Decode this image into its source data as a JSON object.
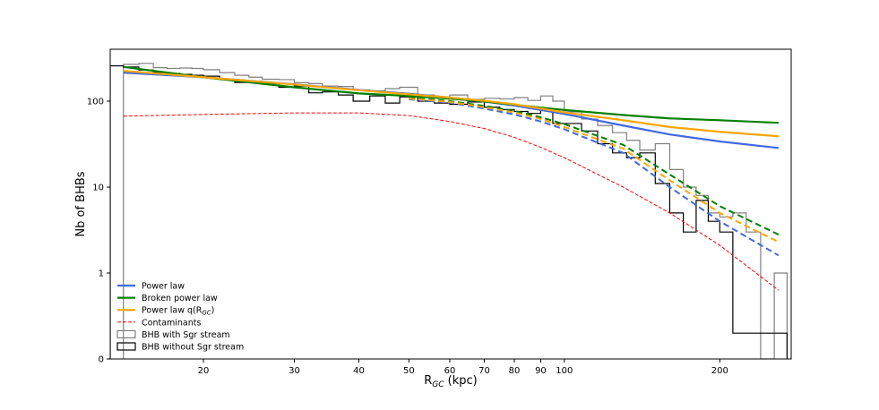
{
  "chart_data": {
    "type": "line",
    "title": "",
    "xlabel_main": "R",
    "xlabel_sub": "GC",
    "xlabel_tail": " (kpc)",
    "ylabel": "Nb of BHBs",
    "x_scale": "log",
    "y_scale": "symlog",
    "xlim": [
      13.2,
      275
    ],
    "ylim": [
      0,
      350
    ],
    "x_ticks": [
      {
        "value": 20,
        "label": "20"
      },
      {
        "value": 30,
        "label": "30"
      },
      {
        "value": 40,
        "label": "40"
      },
      {
        "value": 50,
        "label": "50"
      },
      {
        "value": 60,
        "label": "60"
      },
      {
        "value": 70,
        "label": "70"
      },
      {
        "value": 80,
        "label": "80"
      },
      {
        "value": 90,
        "label": "90"
      },
      {
        "value": 100,
        "label": "100"
      },
      {
        "value": 200,
        "label": "200"
      }
    ],
    "y_ticks": [
      {
        "value": 0,
        "label": "0"
      },
      {
        "value": 1,
        "label": "1"
      },
      {
        "value": 10,
        "label": "10"
      },
      {
        "value": 100,
        "label": "100"
      }
    ],
    "grid": false,
    "legend_position": "bottom-left",
    "colors": {
      "power_law": "#4169e1",
      "broken_power_law": "#008000",
      "power_law_q": "#ffa500",
      "contaminants": "#ff0000",
      "hist_with_sgr": "#808080",
      "hist_without_sgr": "#000000"
    },
    "legend": [
      {
        "key": "power_law",
        "label": "Power law",
        "style": "line",
        "sub": ""
      },
      {
        "key": "broken_power_law",
        "label": "Broken power law",
        "style": "line",
        "sub": ""
      },
      {
        "key": "power_law_q",
        "label": "Power law q(R",
        "sub": "GC",
        "tail": ")",
        "style": "line"
      },
      {
        "key": "contaminants",
        "label": "Contaminants",
        "style": "dashed-thin",
        "sub": ""
      },
      {
        "key": "hist_with_sgr",
        "label": "BHB with Sgr stream",
        "style": "box",
        "sub": ""
      },
      {
        "key": "hist_without_sgr",
        "label": "BHB without Sgr stream",
        "style": "box",
        "sub": ""
      }
    ],
    "series": [
      {
        "key": "power_law",
        "name": "Power law",
        "style": "solid",
        "x": [
          14,
          20,
          30,
          40,
          50,
          60,
          70,
          80,
          90,
          100,
          130,
          160,
          200,
          260
        ],
        "y": [
          215,
          190,
          157,
          135,
          122,
          110,
          99,
          89,
          79,
          71,
          52,
          41,
          34,
          28.5
        ]
      },
      {
        "key": "broken_power_law",
        "name": "Broken power law",
        "style": "solid",
        "x": [
          14,
          20,
          30,
          40,
          50,
          60,
          70,
          80,
          90,
          100,
          130,
          160,
          200,
          260
        ],
        "y": [
          250,
          190,
          145,
          123,
          115,
          107,
          99,
          91,
          84,
          79,
          69,
          63,
          60,
          56
        ]
      },
      {
        "key": "power_law_q",
        "name": "Power law q(R_GC)",
        "style": "solid",
        "x": [
          14,
          20,
          30,
          40,
          50,
          60,
          70,
          80,
          90,
          100,
          130,
          160,
          200,
          260
        ],
        "y": [
          225,
          190,
          156,
          134,
          120,
          110,
          101,
          92,
          82,
          74,
          60,
          50,
          44,
          39
        ]
      },
      {
        "key": "power_law",
        "name": "",
        "style": "dashed",
        "x": [
          50,
          60,
          70,
          80,
          90,
          100,
          130,
          160,
          200,
          260
        ],
        "y": [
          105,
          96,
          82,
          70,
          58,
          47,
          25,
          10,
          4,
          1.6
        ]
      },
      {
        "key": "broken_power_law",
        "name": "",
        "style": "dashed",
        "x": [
          50,
          60,
          70,
          80,
          90,
          100,
          130,
          160,
          200,
          260
        ],
        "y": [
          110,
          100,
          88,
          77,
          65,
          54,
          31,
          14,
          6,
          2.8
        ]
      },
      {
        "key": "power_law_q",
        "name": "",
        "style": "dashed",
        "x": [
          50,
          60,
          70,
          80,
          90,
          100,
          130,
          160,
          200,
          260
        ],
        "y": [
          107,
          98,
          85,
          74,
          62,
          50,
          28,
          12,
          5,
          2.3
        ]
      },
      {
        "key": "contaminants",
        "name": "Contaminants",
        "style": "dashed-thin",
        "x": [
          14,
          20,
          30,
          40,
          50,
          60,
          70,
          80,
          90,
          100,
          130,
          160,
          200,
          260
        ],
        "y": [
          67,
          70,
          73,
          73,
          68,
          58,
          48,
          38,
          29,
          22,
          10,
          5,
          2.1,
          0.8
        ]
      }
    ],
    "histograms": [
      {
        "key": "hist_with_sgr",
        "name": "BHB with Sgr stream",
        "edges": [
          14,
          15,
          16,
          17,
          18,
          19,
          20,
          21.5,
          23,
          24.5,
          26,
          28,
          30,
          32,
          34,
          36.5,
          39,
          42,
          45,
          48,
          52,
          56,
          60,
          65,
          70,
          75,
          80,
          85,
          90,
          95,
          100,
          108,
          116,
          124,
          132,
          140,
          150,
          160,
          170,
          180,
          190,
          200,
          212,
          225,
          240,
          255,
          270
        ],
        "values": [
          268,
          275,
          245,
          240,
          243,
          240,
          232,
          215,
          200,
          190,
          180,
          178,
          164,
          160,
          150,
          148,
          135,
          132,
          140,
          145,
          118,
          110,
          118,
          105,
          108,
          106,
          110,
          102,
          115,
          100,
          75,
          62,
          52,
          43,
          35,
          27,
          32,
          16,
          10,
          8,
          5,
          4.5,
          5,
          3,
          0,
          1
        ]
      },
      {
        "key": "hist_without_sgr",
        "name": "BHB without Sgr stream",
        "edges": [
          13.2,
          14,
          15,
          16,
          17,
          18,
          19,
          20,
          21.5,
          23,
          24.5,
          26,
          28,
          30,
          32,
          34,
          36.5,
          39,
          42,
          45,
          48,
          52,
          56,
          60,
          65,
          70,
          75,
          80,
          85,
          90,
          95,
          100,
          108,
          116,
          124,
          132,
          140,
          150,
          160,
          170,
          180,
          190,
          200,
          212,
          225,
          240,
          255,
          270
        ],
        "values": [
          258,
          250,
          230,
          215,
          210,
          205,
          200,
          195,
          180,
          165,
          170,
          160,
          145,
          150,
          125,
          128,
          118,
          100,
          115,
          95,
          112,
          100,
          95,
          92,
          98,
          85,
          80,
          76,
          72,
          82,
          55,
          55,
          45,
          32,
          25,
          22,
          25,
          11,
          5,
          3,
          7,
          4,
          3,
          0.3,
          0.3,
          0.3,
          0.3
        ]
      }
    ]
  }
}
